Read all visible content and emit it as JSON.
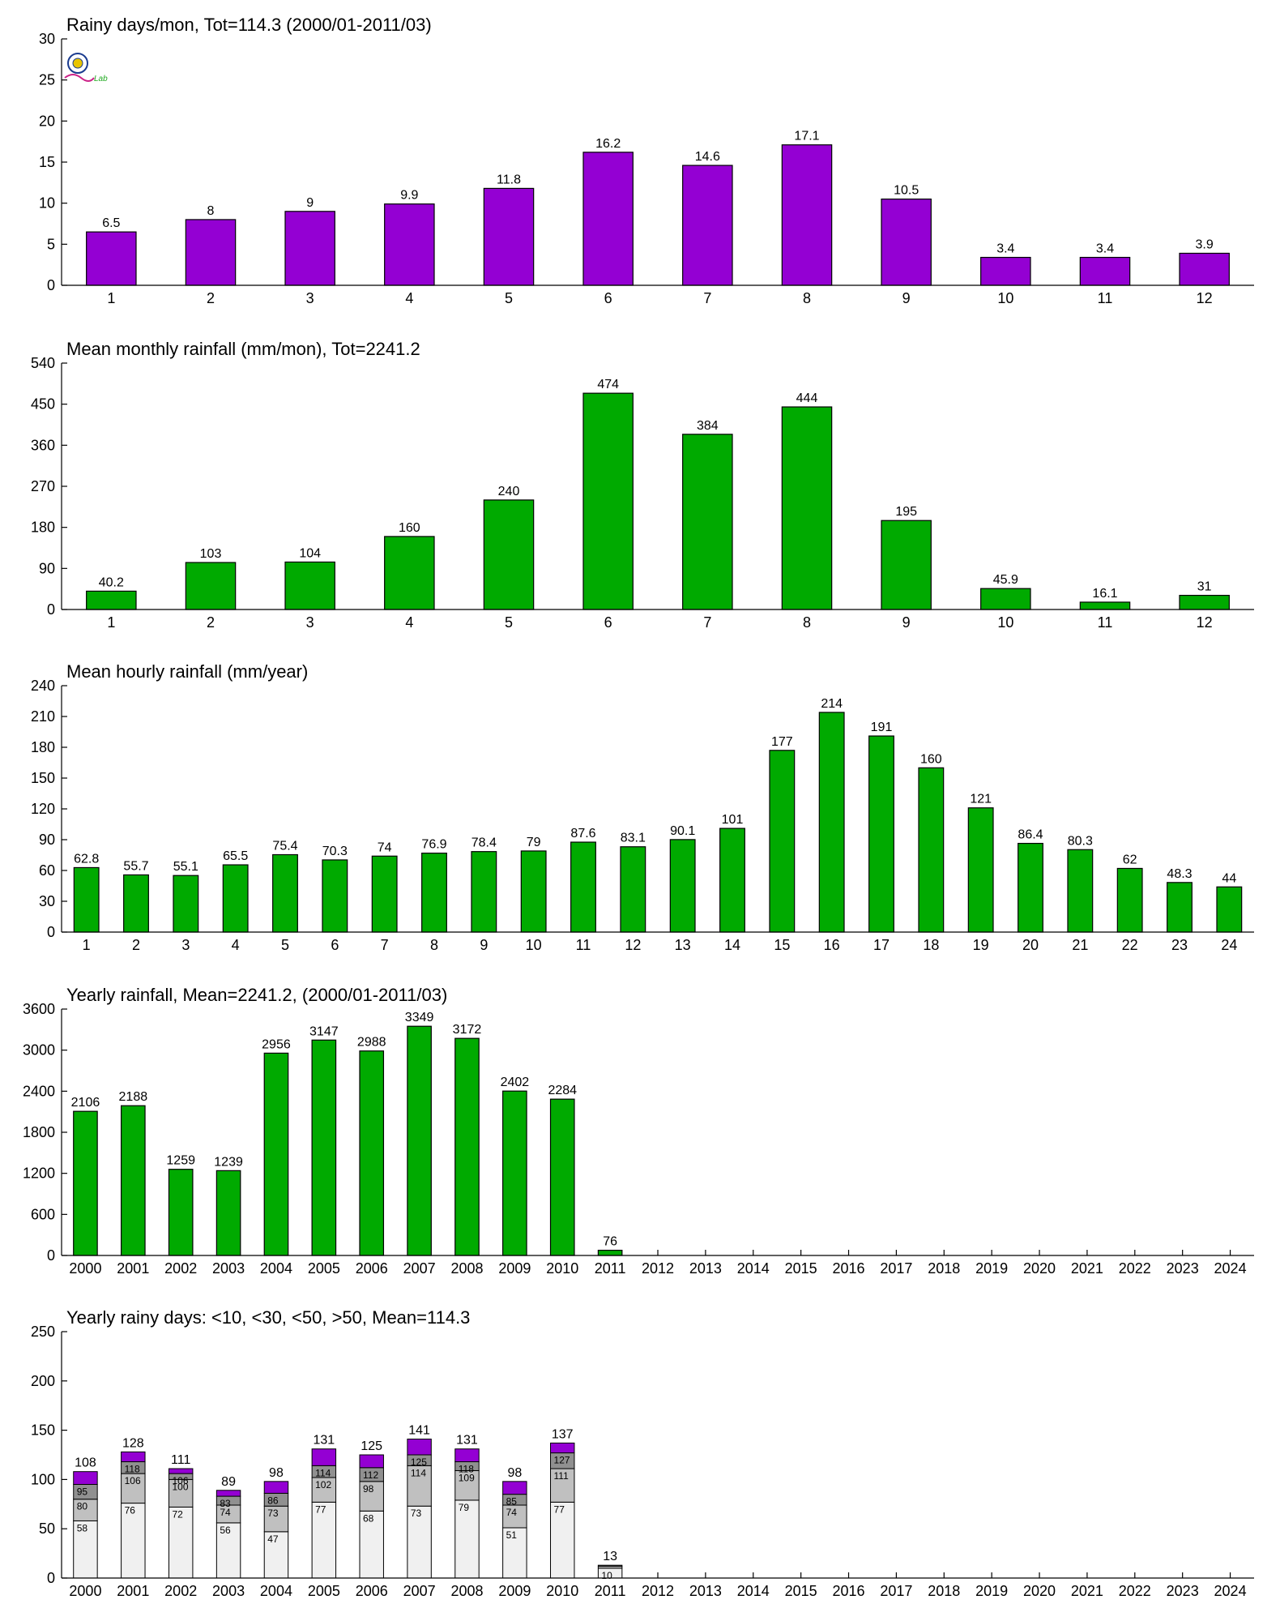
{
  "colors": {
    "purple": "#9400d3",
    "green": "#00aa00",
    "seg_lt10": "#f0f0f0",
    "seg_lt30": "#c0c0c0",
    "seg_lt50": "#909090",
    "seg_gt50": "#9400d3"
  },
  "logo": {
    "text": "Lab",
    "icon_name": "research-lab-logo-icon"
  },
  "chart_data": [
    {
      "id": "rainy-days-per-month",
      "type": "bar",
      "title": "Rainy days/mon, Tot=114.3 (2000/01-2011/03)",
      "categories": [
        "1",
        "2",
        "3",
        "4",
        "5",
        "6",
        "7",
        "8",
        "9",
        "10",
        "11",
        "12"
      ],
      "values": [
        6.5,
        8,
        9,
        9.9,
        11.8,
        16.2,
        14.6,
        17.1,
        10.5,
        3.4,
        3.4,
        3.9
      ],
      "labels": [
        "6.5",
        "8",
        "9",
        "9.9",
        "11.8",
        "16.2",
        "14.6",
        "17.1",
        "10.5",
        "3.4",
        "3.4",
        "3.9"
      ],
      "ylim": [
        0,
        30
      ],
      "yticks": [
        "0",
        "5",
        "10",
        "15",
        "20",
        "25",
        "30"
      ],
      "color": "purple"
    },
    {
      "id": "mean-monthly-rainfall",
      "type": "bar",
      "title": "Mean monthly rainfall (mm/mon), Tot=2241.2",
      "categories": [
        "1",
        "2",
        "3",
        "4",
        "5",
        "6",
        "7",
        "8",
        "9",
        "10",
        "11",
        "12"
      ],
      "values": [
        40.2,
        103,
        104,
        160,
        240,
        474,
        384,
        444,
        195,
        45.9,
        16.1,
        31
      ],
      "labels": [
        "40.2",
        "103",
        "104",
        "160",
        "240",
        "474",
        "384",
        "444",
        "195",
        "45.9",
        "16.1",
        "31"
      ],
      "ylim": [
        0,
        540
      ],
      "yticks": [
        "0",
        "90",
        "180",
        "270",
        "360",
        "450",
        "540"
      ],
      "color": "green"
    },
    {
      "id": "mean-hourly-rainfall",
      "type": "bar",
      "title": "Mean hourly rainfall (mm/year)",
      "categories": [
        "1",
        "2",
        "3",
        "4",
        "5",
        "6",
        "7",
        "8",
        "9",
        "10",
        "11",
        "12",
        "13",
        "14",
        "15",
        "16",
        "17",
        "18",
        "19",
        "20",
        "21",
        "22",
        "23",
        "24"
      ],
      "values": [
        62.8,
        55.7,
        55.1,
        65.5,
        75.4,
        70.3,
        74,
        76.9,
        78.4,
        79,
        87.6,
        83.1,
        90.1,
        101,
        177,
        214,
        191,
        160,
        121,
        86.4,
        80.3,
        62,
        48.3,
        44
      ],
      "labels": [
        "62.8",
        "55.7",
        "55.1",
        "65.5",
        "75.4",
        "70.3",
        "74",
        "76.9",
        "78.4",
        "79",
        "87.6",
        "83.1",
        "90.1",
        "101",
        "177",
        "214",
        "191",
        "160",
        "121",
        "86.4",
        "80.3",
        "62",
        "48.3",
        "44"
      ],
      "ylim": [
        0,
        240
      ],
      "yticks": [
        "0",
        "30",
        "60",
        "90",
        "120",
        "150",
        "180",
        "210",
        "240"
      ],
      "color": "green"
    },
    {
      "id": "yearly-rainfall",
      "type": "bar",
      "title": "Yearly rainfall, Mean=2241.2, (2000/01-2011/03)",
      "categories": [
        "2000",
        "2001",
        "2002",
        "2003",
        "2004",
        "2005",
        "2006",
        "2007",
        "2008",
        "2009",
        "2010",
        "2011",
        "2012",
        "2013",
        "2014",
        "2015",
        "2016",
        "2017",
        "2018",
        "2019",
        "2020",
        "2021",
        "2022",
        "2023",
        "2024"
      ],
      "values": [
        2106,
        2188,
        1259,
        1239,
        2956,
        3147,
        2988,
        3349,
        3172,
        2402,
        2284,
        76,
        null,
        null,
        null,
        null,
        null,
        null,
        null,
        null,
        null,
        null,
        null,
        null,
        null
      ],
      "labels": [
        "2106",
        "2188",
        "1259",
        "1239",
        "2956",
        "3147",
        "2988",
        "3349",
        "3172",
        "2402",
        "2284",
        "76",
        "",
        "",
        "",
        "",
        "",
        "",
        "",
        "",
        "",
        "",
        "",
        "",
        ""
      ],
      "ylim": [
        0,
        3600
      ],
      "yticks": [
        "0",
        "600",
        "1200",
        "1800",
        "2400",
        "3000",
        "3600"
      ],
      "color": "green"
    },
    {
      "id": "yearly-rainy-days",
      "type": "bar",
      "stacked": true,
      "title": "Yearly rainy days: <10, <30, <50, >50, Mean=114.3",
      "categories": [
        "2000",
        "2001",
        "2002",
        "2003",
        "2004",
        "2005",
        "2006",
        "2007",
        "2008",
        "2009",
        "2010",
        "2011",
        "2012",
        "2013",
        "2014",
        "2015",
        "2016",
        "2017",
        "2018",
        "2019",
        "2020",
        "2021",
        "2022",
        "2023",
        "2024"
      ],
      "cumulative": [
        [
          58,
          80,
          95,
          108
        ],
        [
          76,
          106,
          118,
          128
        ],
        [
          72,
          100,
          106,
          111
        ],
        [
          56,
          74,
          83,
          89
        ],
        [
          47,
          73,
          86,
          98
        ],
        [
          77,
          102,
          114,
          131
        ],
        [
          68,
          98,
          112,
          125
        ],
        [
          73,
          114,
          125,
          141
        ],
        [
          79,
          109,
          118,
          131
        ],
        [
          51,
          74,
          85,
          98
        ],
        [
          77,
          111,
          127,
          137
        ],
        [
          10,
          12,
          13,
          13
        ],
        null,
        null,
        null,
        null,
        null,
        null,
        null,
        null,
        null,
        null,
        null,
        null,
        null
      ],
      "segment_labels": [
        [
          "58",
          "80",
          "95"
        ],
        [
          "76",
          "106",
          "118"
        ],
        [
          "72",
          "100",
          "106"
        ],
        [
          "56",
          "74",
          "83"
        ],
        [
          "47",
          "73",
          "86"
        ],
        [
          "77",
          "102",
          "114"
        ],
        [
          "68",
          "98",
          "112"
        ],
        [
          "73",
          "114",
          "125"
        ],
        [
          "79",
          "109",
          "118"
        ],
        [
          "51",
          "74",
          "85"
        ],
        [
          "77",
          "111",
          "127"
        ],
        [
          "10",
          "",
          ""
        ],
        null,
        null,
        null,
        null,
        null,
        null,
        null,
        null,
        null,
        null,
        null,
        null,
        null
      ],
      "total_labels": [
        "108",
        "128",
        "111",
        "89",
        "98",
        "131",
        "125",
        "141",
        "131",
        "98",
        "137",
        "13",
        "",
        "",
        "",
        "",
        "",
        "",
        "",
        "",
        "",
        "",
        "",
        "",
        ""
      ],
      "ylim": [
        0,
        250
      ],
      "yticks": [
        "0",
        "50",
        "100",
        "150",
        "200",
        "250"
      ],
      "segment_colors": [
        "seg_lt10",
        "seg_lt30",
        "seg_lt50",
        "seg_gt50"
      ]
    }
  ]
}
